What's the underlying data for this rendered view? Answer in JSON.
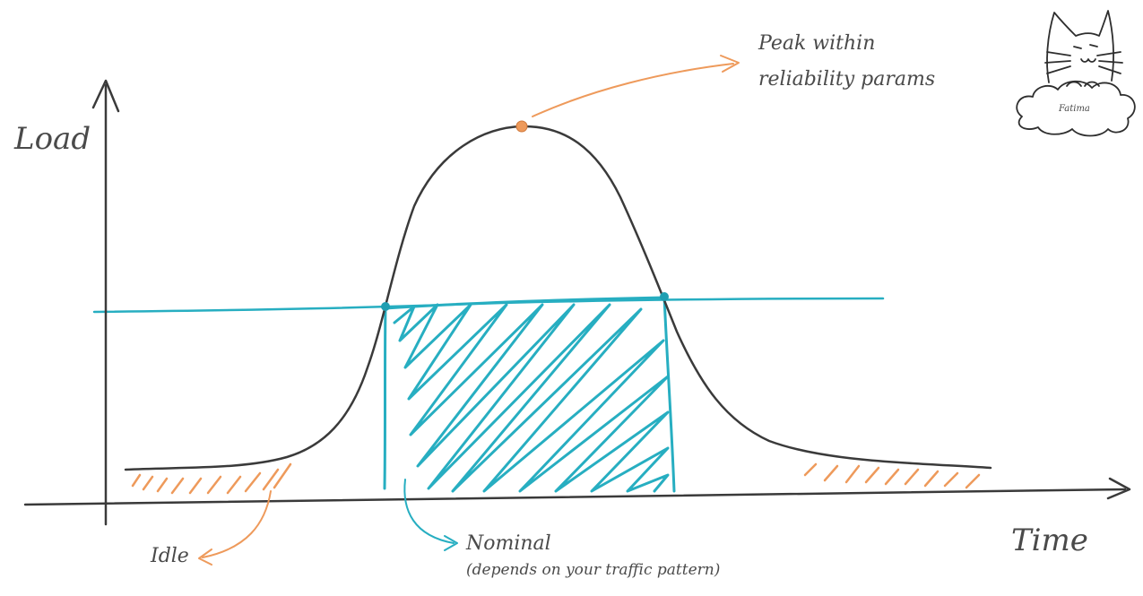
{
  "axes": {
    "y_label": "Load",
    "x_label": "Time"
  },
  "annotations": {
    "peak_line1": "Peak within",
    "peak_line2": "reliability params",
    "idle": "Idle",
    "nominal": "Nominal",
    "nominal_sub": "(depends on your traffic pattern)"
  },
  "signature": "Fatima",
  "colors": {
    "ink": "#3a3a3a",
    "teal": "#27aec1",
    "orange": "#ee9a5b",
    "label": "#4a4a4a"
  },
  "icons": [
    "cat-doodle-icon"
  ]
}
